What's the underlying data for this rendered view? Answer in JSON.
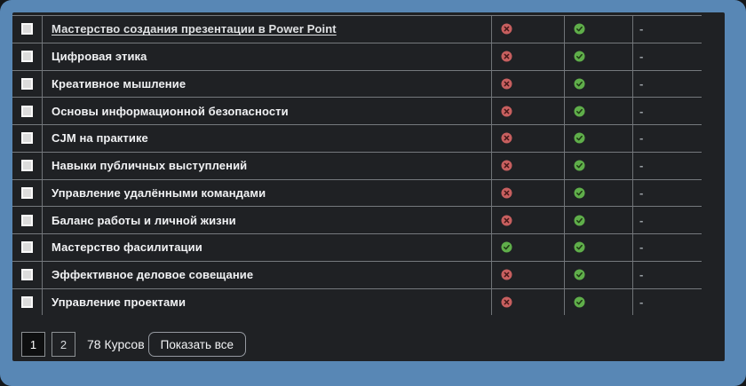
{
  "colors": {
    "accent_blue": "#5887b5",
    "panel_bg": "#1f2124",
    "fail_red": "#c75f5f",
    "pass_green": "#5fae4a"
  },
  "table": {
    "rows": [
      {
        "name": "Мастерство создания презентации в Power Point",
        "is_link": true,
        "status1": "fail",
        "status2": "pass",
        "extra": "-"
      },
      {
        "name": "Цифровая этика",
        "is_link": false,
        "status1": "fail",
        "status2": "pass",
        "extra": "-"
      },
      {
        "name": "Креативное мышление",
        "is_link": false,
        "status1": "fail",
        "status2": "pass",
        "extra": "-"
      },
      {
        "name": "Основы информационной безопасности",
        "is_link": false,
        "status1": "fail",
        "status2": "pass",
        "extra": "-"
      },
      {
        "name": "CJM на практике",
        "is_link": false,
        "status1": "fail",
        "status2": "pass",
        "extra": "-"
      },
      {
        "name": "Навыки публичных выступлений",
        "is_link": false,
        "status1": "fail",
        "status2": "pass",
        "extra": "-"
      },
      {
        "name": "Управление удалёнными командами",
        "is_link": false,
        "status1": "fail",
        "status2": "pass",
        "extra": "-"
      },
      {
        "name": "Баланс работы и личной жизни",
        "is_link": false,
        "status1": "fail",
        "status2": "pass",
        "extra": "-"
      },
      {
        "name": "Мастерство фасилитации",
        "is_link": false,
        "status1": "pass",
        "status2": "pass",
        "extra": "-"
      },
      {
        "name": "Эффективное деловое совещание",
        "is_link": false,
        "status1": "fail",
        "status2": "pass",
        "extra": "-"
      },
      {
        "name": "Управление проектами",
        "is_link": false,
        "status1": "fail",
        "status2": "pass",
        "extra": "-"
      }
    ]
  },
  "pagination": {
    "pages": [
      "1",
      "2"
    ],
    "active_page": "1",
    "count_label": "78 Курсов",
    "show_all_label": "Показать все"
  }
}
